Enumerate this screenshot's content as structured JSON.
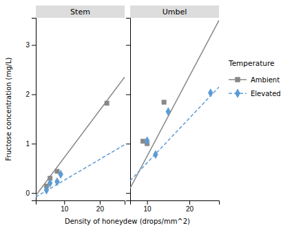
{
  "chart_data": [
    {
      "type": "scatter",
      "title": "Stem",
      "xlabel": "Density of honeydew (drops/mm^2)",
      "ylabel": "Fructose concentration (mg/L)",
      "xlim": [
        2,
        27
      ],
      "ylim": [
        -0.15,
        3.55
      ],
      "xticks": [
        10,
        20
      ],
      "yticks": [
        0,
        1,
        2,
        3
      ],
      "legend": "right",
      "legend_title": "Temperature",
      "series": [
        {
          "type": "line",
          "color": "#888888",
          "line_style": "solid",
          "x": [
            2.0,
            27.0
          ],
          "values": [
            -0.05,
            2.35
          ]
        },
        {
          "type": "line",
          "color": "#5b9bd5",
          "line_style": "dashed",
          "x": [
            2.0,
            27.0
          ],
          "values": [
            -0.08,
            0.98
          ]
        },
        {
          "name": "Ambient",
          "type": "scatter",
          "color": "#888888",
          "marker": "square",
          "x": [
            5,
            6,
            8,
            22
          ],
          "values": [
            0.14,
            0.3,
            0.44,
            1.82
          ]
        },
        {
          "name": "Elevated",
          "type": "scatter",
          "color": "#5b9bd5",
          "marker": "diamond",
          "x": [
            5,
            6,
            8,
            9
          ],
          "values": [
            0.06,
            0.2,
            0.23,
            0.38
          ]
        }
      ]
    },
    {
      "type": "scatter",
      "title": "Umbel",
      "xlim": [
        6,
        27
      ],
      "ylim": [
        -0.15,
        3.55
      ],
      "xticks": [
        10,
        20
      ],
      "yticks": [
        0,
        1,
        2,
        3
      ],
      "tick_labels": "x",
      "series": [
        {
          "type": "line",
          "color": "#888888",
          "line_style": "solid",
          "x": [
            6.0,
            27.0
          ],
          "values": [
            0.1,
            3.5
          ]
        },
        {
          "type": "line",
          "color": "#5b9bd5",
          "line_style": "dashed",
          "x": [
            6.0,
            27.0
          ],
          "values": [
            0.25,
            2.15
          ]
        },
        {
          "name": "Ambient",
          "type": "scatter",
          "color": "#888888",
          "marker": "square",
          "x": [
            9,
            10,
            14
          ],
          "values": [
            1.05,
            1.0,
            1.84
          ]
        },
        {
          "name": "Elevated",
          "type": "scatter",
          "color": "#5b9bd5",
          "marker": "diamond",
          "x": [
            10,
            12,
            15,
            25
          ],
          "values": [
            1.06,
            0.78,
            1.65,
            2.03
          ]
        }
      ]
    }
  ]
}
